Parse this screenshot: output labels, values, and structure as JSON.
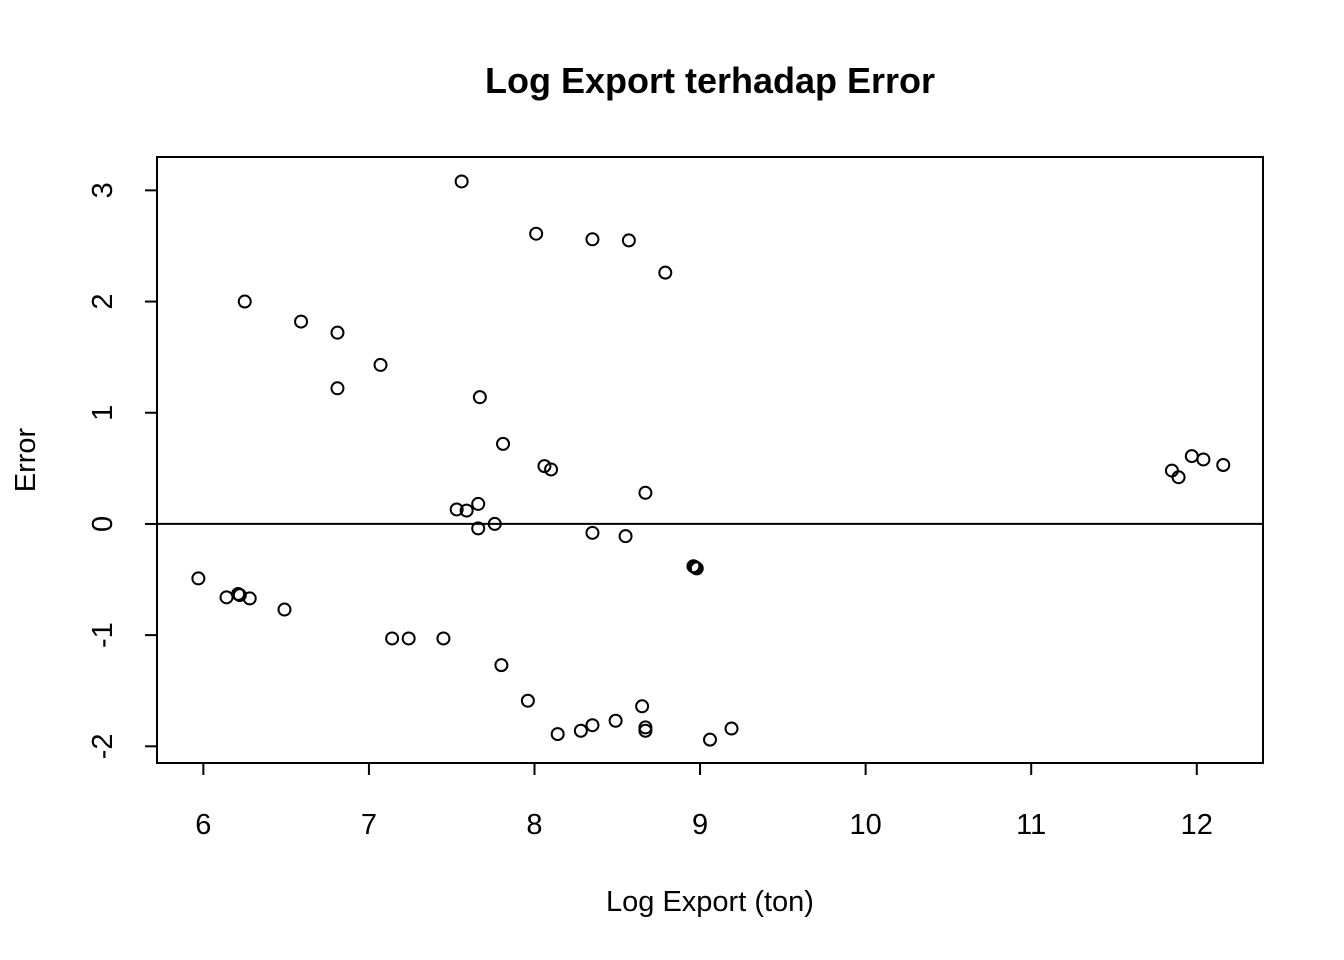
{
  "chart_data": {
    "type": "scatter",
    "title": "Log Export terhadap Error",
    "xlabel": "Log Export (ton)",
    "ylabel": "Error",
    "xlim": [
      5.72,
      12.4
    ],
    "ylim": [
      -2.15,
      3.3
    ],
    "x_ticks": [
      6,
      7,
      8,
      9,
      10,
      11,
      12
    ],
    "y_ticks": [
      -2,
      -1,
      0,
      1,
      2,
      3
    ],
    "x_tick_labels": [
      "6",
      "7",
      "8",
      "9",
      "10",
      "11",
      "12"
    ],
    "y_tick_labels": [
      "-2",
      "-1",
      "0",
      "1",
      "2",
      "3"
    ],
    "reference_line": {
      "y": 0
    },
    "frame": true,
    "grid": false,
    "marker": "open-circle",
    "points": [
      {
        "x": 7.56,
        "y": 3.08
      },
      {
        "x": 8.01,
        "y": 2.61
      },
      {
        "x": 8.35,
        "y": 2.56
      },
      {
        "x": 8.57,
        "y": 2.55
      },
      {
        "x": 8.79,
        "y": 2.26
      },
      {
        "x": 6.25,
        "y": 2.0
      },
      {
        "x": 6.59,
        "y": 1.82
      },
      {
        "x": 6.81,
        "y": 1.72
      },
      {
        "x": 7.07,
        "y": 1.43
      },
      {
        "x": 6.81,
        "y": 1.22
      },
      {
        "x": 7.67,
        "y": 1.14
      },
      {
        "x": 7.81,
        "y": 0.72
      },
      {
        "x": 8.06,
        "y": 0.52
      },
      {
        "x": 8.1,
        "y": 0.49
      },
      {
        "x": 8.67,
        "y": 0.28
      },
      {
        "x": 7.66,
        "y": 0.18
      },
      {
        "x": 7.53,
        "y": 0.13
      },
      {
        "x": 7.59,
        "y": 0.12
      },
      {
        "x": 7.76,
        "y": 0.0
      },
      {
        "x": 7.66,
        "y": -0.04
      },
      {
        "x": 8.35,
        "y": -0.08
      },
      {
        "x": 8.55,
        "y": -0.11
      },
      {
        "x": 8.96,
        "y": -0.38
      },
      {
        "x": 8.97,
        "y": -0.39
      },
      {
        "x": 8.98,
        "y": -0.4
      },
      {
        "x": 5.97,
        "y": -0.49
      },
      {
        "x": 6.14,
        "y": -0.66
      },
      {
        "x": 6.21,
        "y": -0.63
      },
      {
        "x": 6.22,
        "y": -0.64
      },
      {
        "x": 6.28,
        "y": -0.67
      },
      {
        "x": 6.49,
        "y": -0.77
      },
      {
        "x": 7.14,
        "y": -1.03
      },
      {
        "x": 7.24,
        "y": -1.03
      },
      {
        "x": 7.45,
        "y": -1.03
      },
      {
        "x": 7.8,
        "y": -1.27
      },
      {
        "x": 7.96,
        "y": -1.59
      },
      {
        "x": 8.65,
        "y": -1.64
      },
      {
        "x": 8.49,
        "y": -1.77
      },
      {
        "x": 8.35,
        "y": -1.81
      },
      {
        "x": 8.67,
        "y": -1.83
      },
      {
        "x": 8.67,
        "y": -1.86
      },
      {
        "x": 8.28,
        "y": -1.86
      },
      {
        "x": 8.14,
        "y": -1.89
      },
      {
        "x": 9.19,
        "y": -1.84
      },
      {
        "x": 9.06,
        "y": -1.94
      },
      {
        "x": 11.85,
        "y": 0.48
      },
      {
        "x": 11.89,
        "y": 0.42
      },
      {
        "x": 11.97,
        "y": 0.61
      },
      {
        "x": 12.04,
        "y": 0.58
      },
      {
        "x": 12.16,
        "y": 0.53
      }
    ]
  }
}
